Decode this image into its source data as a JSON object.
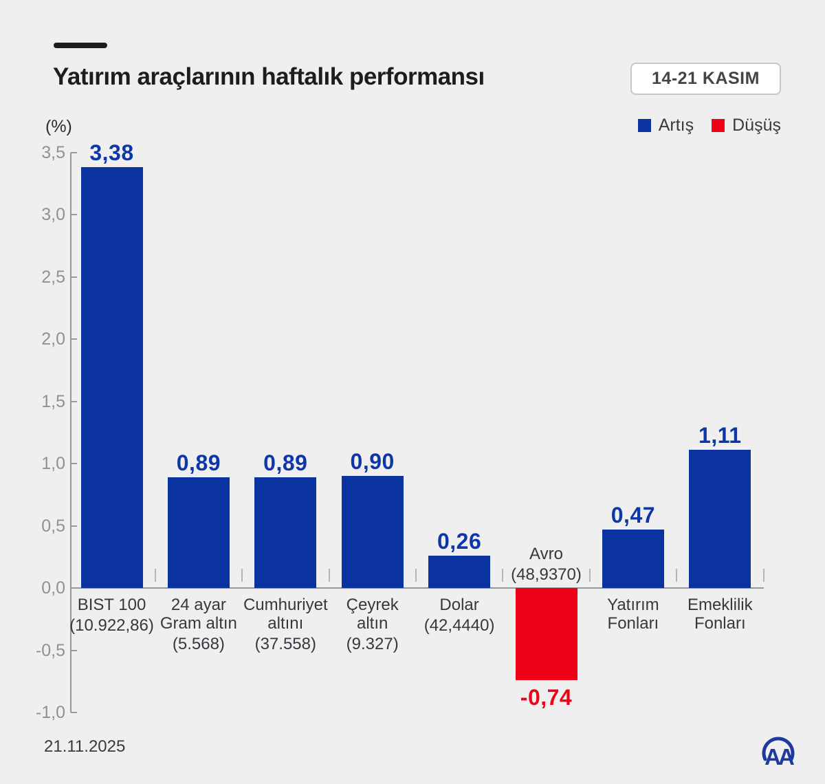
{
  "header": {
    "title": "Yatırım araçlarının haftalık performansı",
    "date_badge": "14-21 KASIM"
  },
  "legend": {
    "increase": {
      "label": "Artış",
      "color": "#0a33a0"
    },
    "decrease": {
      "label": "Düşüş",
      "color": "#ee0217"
    }
  },
  "footer": {
    "date": "21.11.2025",
    "logo": "aa-logo"
  },
  "chart_data": {
    "type": "bar",
    "title": "Yatırım araçlarının haftalık performansı",
    "unit_label": "(%)",
    "ylim": [
      -1.0,
      3.5
    ],
    "ytick_step": 0.5,
    "ytick_labels": [
      "3,5",
      "3,0",
      "2,5",
      "2,0",
      "1,5",
      "1,0",
      "0,5",
      "0,0",
      "-0,5",
      "-1,0"
    ],
    "grid": false,
    "legend_position": "top-right",
    "categories": [
      {
        "name_lines": [
          "BIST 100"
        ],
        "detail": "(10.922,86)",
        "value": 3.38,
        "value_label": "3,38"
      },
      {
        "name_lines": [
          "24 ayar",
          "Gram altın"
        ],
        "detail": "(5.568)",
        "value": 0.89,
        "value_label": "0,89"
      },
      {
        "name_lines": [
          "Cumhuriyet",
          "altını"
        ],
        "detail": "(37.558)",
        "value": 0.89,
        "value_label": "0,89"
      },
      {
        "name_lines": [
          "Çeyrek",
          "altın"
        ],
        "detail": "(9.327)",
        "value": 0.9,
        "value_label": "0,90"
      },
      {
        "name_lines": [
          "Dolar"
        ],
        "detail": "(42,4440)",
        "value": 0.26,
        "value_label": "0,26"
      },
      {
        "name_lines": [
          "Avro"
        ],
        "detail": "(48,9370)",
        "value": -0.74,
        "value_label": "-0,74"
      },
      {
        "name_lines": [
          "Yatırım",
          "Fonları"
        ],
        "detail": "",
        "value": 0.47,
        "value_label": "0,47"
      },
      {
        "name_lines": [
          "Emeklilik",
          "Fonları"
        ],
        "detail": "",
        "value": 1.11,
        "value_label": "1,11"
      }
    ],
    "colors": {
      "positive_bar": "#0a33a0",
      "negative_bar": "#ee0217",
      "positive_value_label": "#0d37a8",
      "negative_value_label": "#ee0217"
    }
  }
}
